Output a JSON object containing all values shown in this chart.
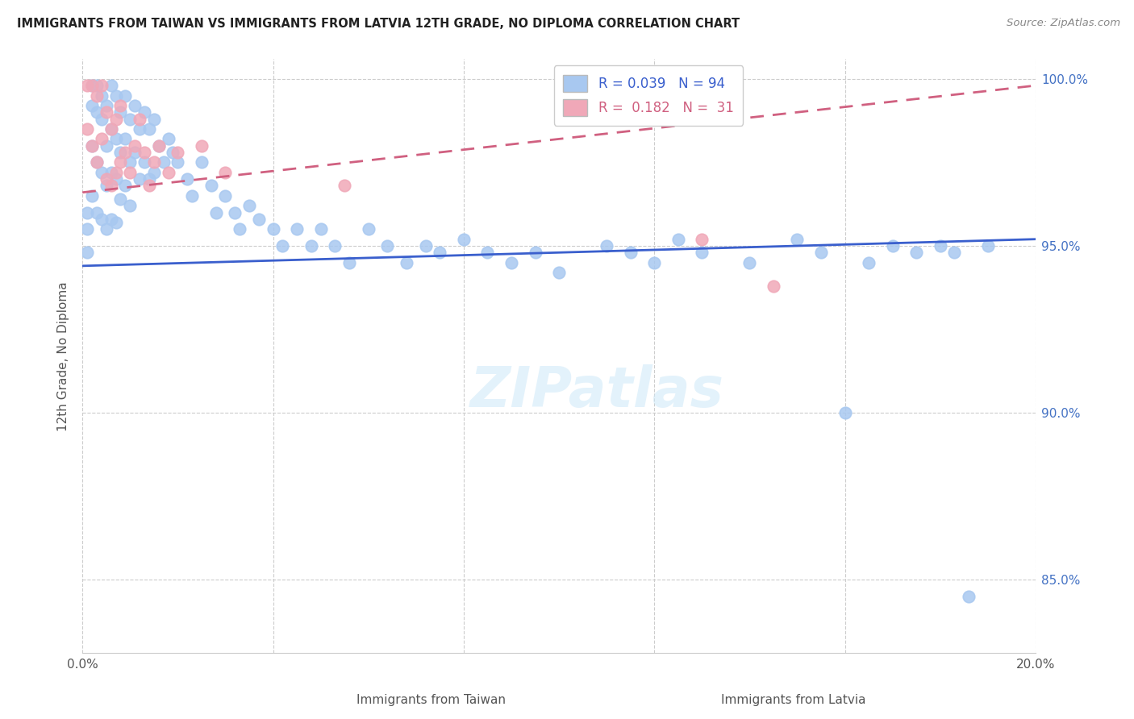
{
  "title": "IMMIGRANTS FROM TAIWAN VS IMMIGRANTS FROM LATVIA 12TH GRADE, NO DIPLOMA CORRELATION CHART",
  "source": "Source: ZipAtlas.com",
  "xlabel_taiwan": "Immigrants from Taiwan",
  "xlabel_latvia": "Immigrants from Latvia",
  "ylabel": "12th Grade, No Diploma",
  "taiwan_R": 0.039,
  "taiwan_N": 94,
  "latvia_R": 0.182,
  "latvia_N": 31,
  "xlim": [
    0.0,
    0.2
  ],
  "ylim": [
    0.828,
    1.006
  ],
  "yticks": [
    0.85,
    0.9,
    0.95,
    1.0
  ],
  "ytick_labels": [
    "85.0%",
    "90.0%",
    "95.0%",
    "100.0%"
  ],
  "xticks": [
    0.0,
    0.04,
    0.08,
    0.12,
    0.16,
    0.2
  ],
  "xtick_labels": [
    "0.0%",
    "",
    "",
    "",
    "",
    "20.0%"
  ],
  "taiwan_color": "#a8c8f0",
  "latvia_color": "#f0a8b8",
  "taiwan_line_color": "#3a5fcd",
  "latvia_line_color": "#d06080",
  "right_axis_color": "#4472c4",
  "taiwan_x": [
    0.001,
    0.001,
    0.001,
    0.002,
    0.002,
    0.002,
    0.002,
    0.003,
    0.003,
    0.003,
    0.003,
    0.004,
    0.004,
    0.004,
    0.004,
    0.005,
    0.005,
    0.005,
    0.005,
    0.006,
    0.006,
    0.006,
    0.006,
    0.007,
    0.007,
    0.007,
    0.007,
    0.008,
    0.008,
    0.008,
    0.009,
    0.009,
    0.009,
    0.01,
    0.01,
    0.01,
    0.011,
    0.011,
    0.012,
    0.012,
    0.013,
    0.013,
    0.014,
    0.014,
    0.015,
    0.015,
    0.016,
    0.017,
    0.018,
    0.019,
    0.02,
    0.022,
    0.023,
    0.025,
    0.027,
    0.028,
    0.03,
    0.032,
    0.033,
    0.035,
    0.037,
    0.04,
    0.042,
    0.045,
    0.048,
    0.05,
    0.053,
    0.056,
    0.06,
    0.064,
    0.068,
    0.072,
    0.075,
    0.08,
    0.085,
    0.09,
    0.095,
    0.1,
    0.11,
    0.115,
    0.12,
    0.125,
    0.13,
    0.14,
    0.15,
    0.155,
    0.16,
    0.165,
    0.17,
    0.175,
    0.18,
    0.183,
    0.186,
    0.19
  ],
  "taiwan_y": [
    0.96,
    0.955,
    0.948,
    0.998,
    0.992,
    0.98,
    0.965,
    0.998,
    0.99,
    0.975,
    0.96,
    0.995,
    0.988,
    0.972,
    0.958,
    0.992,
    0.98,
    0.968,
    0.955,
    0.998,
    0.985,
    0.972,
    0.958,
    0.995,
    0.982,
    0.97,
    0.957,
    0.99,
    0.978,
    0.964,
    0.995,
    0.982,
    0.968,
    0.988,
    0.975,
    0.962,
    0.992,
    0.978,
    0.985,
    0.97,
    0.99,
    0.975,
    0.985,
    0.97,
    0.988,
    0.972,
    0.98,
    0.975,
    0.982,
    0.978,
    0.975,
    0.97,
    0.965,
    0.975,
    0.968,
    0.96,
    0.965,
    0.96,
    0.955,
    0.962,
    0.958,
    0.955,
    0.95,
    0.955,
    0.95,
    0.955,
    0.95,
    0.945,
    0.955,
    0.95,
    0.945,
    0.95,
    0.948,
    0.952,
    0.948,
    0.945,
    0.948,
    0.942,
    0.95,
    0.948,
    0.945,
    0.952,
    0.948,
    0.945,
    0.952,
    0.948,
    0.9,
    0.945,
    0.95,
    0.948,
    0.95,
    0.948,
    0.845,
    0.95
  ],
  "latvia_x": [
    0.001,
    0.001,
    0.002,
    0.002,
    0.003,
    0.003,
    0.004,
    0.004,
    0.005,
    0.005,
    0.006,
    0.006,
    0.007,
    0.007,
    0.008,
    0.008,
    0.009,
    0.01,
    0.011,
    0.012,
    0.013,
    0.014,
    0.015,
    0.016,
    0.018,
    0.02,
    0.025,
    0.03,
    0.055,
    0.13,
    0.145
  ],
  "latvia_y": [
    0.998,
    0.985,
    0.998,
    0.98,
    0.995,
    0.975,
    0.998,
    0.982,
    0.99,
    0.97,
    0.985,
    0.968,
    0.988,
    0.972,
    0.992,
    0.975,
    0.978,
    0.972,
    0.98,
    0.988,
    0.978,
    0.968,
    0.975,
    0.98,
    0.972,
    0.978,
    0.98,
    0.972,
    0.968,
    0.952,
    0.938
  ]
}
